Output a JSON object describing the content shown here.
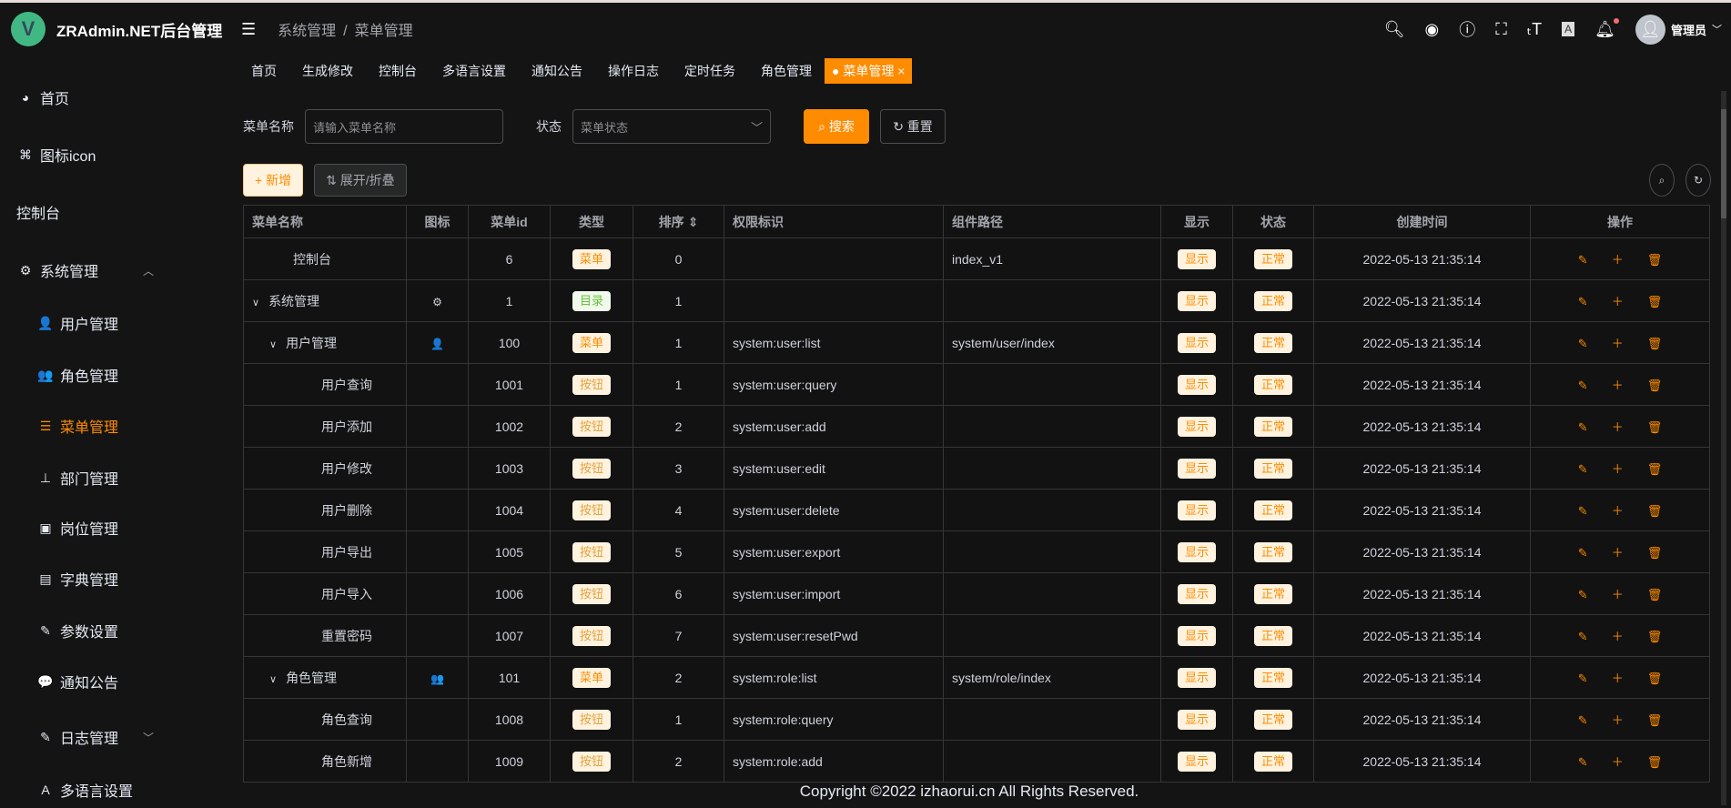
{
  "header": {
    "logo_letter": "V",
    "title": "ZRAdmin.NET后台管理",
    "breadcrumb": [
      "系统管理",
      "/",
      "菜单管理"
    ],
    "user": "管理员"
  },
  "sidebar": {
    "items": [
      {
        "label": "首页",
        "icon": "dashboard-icon",
        "glyph": "◕",
        "level": "top"
      },
      {
        "label": "图标icon",
        "icon": "icon-grid-icon",
        "glyph": "⌘",
        "level": "top"
      },
      {
        "label": "控制台",
        "icon": "",
        "glyph": "",
        "level": "top"
      },
      {
        "label": "系统管理",
        "icon": "gear-icon",
        "glyph": "⚙",
        "level": "top",
        "arrow": "︿"
      },
      {
        "label": "用户管理",
        "icon": "user-icon",
        "glyph": "👤",
        "level": "sub"
      },
      {
        "label": "角色管理",
        "icon": "peoples-icon",
        "glyph": "👥",
        "level": "sub"
      },
      {
        "label": "菜单管理",
        "icon": "tree-table-icon",
        "glyph": "☰",
        "level": "sub",
        "active": true
      },
      {
        "label": "部门管理",
        "icon": "tree-icon",
        "glyph": "⊥",
        "level": "sub"
      },
      {
        "label": "岗位管理",
        "icon": "post-icon",
        "glyph": "▣",
        "level": "sub"
      },
      {
        "label": "字典管理",
        "icon": "dict-icon",
        "glyph": "▤",
        "level": "sub"
      },
      {
        "label": "参数设置",
        "icon": "edit-icon",
        "glyph": "✎",
        "level": "sub"
      },
      {
        "label": "通知公告",
        "icon": "message-icon",
        "glyph": "💬",
        "level": "sub"
      },
      {
        "label": "日志管理",
        "icon": "log-icon",
        "glyph": "✎",
        "level": "sub",
        "arrow": "﹀"
      },
      {
        "label": "多语言设置",
        "icon": "language-icon",
        "glyph": "A",
        "level": "sub"
      }
    ]
  },
  "tags": [
    "首页",
    "生成修改",
    "控制台",
    "多语言设置",
    "通知公告",
    "操作日志",
    "定时任务",
    "角色管理",
    "● 菜单管理 ×"
  ],
  "search": {
    "name_label": "菜单名称",
    "name_placeholder": "请输入菜单名称",
    "status_label": "状态",
    "status_placeholder": "菜单状态",
    "search": "⌕ 搜索",
    "reset": "↻ 重置"
  },
  "toolbar": {
    "add": "+ 新增",
    "expand": "⇅ 展开/折叠"
  },
  "table": {
    "columns": [
      "菜单名称",
      "图标",
      "菜单id",
      "类型",
      "排序 ⇕",
      "权限标识",
      "组件路径",
      "显示",
      "状态",
      "创建时间",
      "操作"
    ],
    "rows": [
      {
        "name": "控制台",
        "indent": 0,
        "caret": "",
        "icon": "",
        "id": "6",
        "type": "菜单",
        "kind": "menu",
        "order": "0",
        "perm": "",
        "path": "index_v1",
        "visible": "显示",
        "status": "正常",
        "time": "2022-05-13 21:35:14"
      },
      {
        "name": "系统管理",
        "indent": 0,
        "caret": "∨",
        "icon": "⚙",
        "id": "1",
        "type": "目录",
        "kind": "dir",
        "order": "1",
        "perm": "",
        "path": "",
        "visible": "显示",
        "status": "正常",
        "time": "2022-05-13 21:35:14"
      },
      {
        "name": "用户管理",
        "indent": 1,
        "caret": "∨",
        "icon": "👤",
        "id": "100",
        "type": "菜单",
        "kind": "menu",
        "order": "1",
        "perm": "system:user:list",
        "path": "system/user/index",
        "visible": "显示",
        "status": "正常",
        "time": "2022-05-13 21:35:14"
      },
      {
        "name": "用户查询",
        "indent": 2,
        "caret": "",
        "icon": "",
        "id": "1001",
        "type": "按钮",
        "kind": "btn2",
        "order": "1",
        "perm": "system:user:query",
        "path": "",
        "visible": "显示",
        "status": "正常",
        "time": "2022-05-13 21:35:14"
      },
      {
        "name": "用户添加",
        "indent": 2,
        "caret": "",
        "icon": "",
        "id": "1002",
        "type": "按钮",
        "kind": "btn2",
        "order": "2",
        "perm": "system:user:add",
        "path": "",
        "visible": "显示",
        "status": "正常",
        "time": "2022-05-13 21:35:14"
      },
      {
        "name": "用户修改",
        "indent": 2,
        "caret": "",
        "icon": "",
        "id": "1003",
        "type": "按钮",
        "kind": "btn2",
        "order": "3",
        "perm": "system:user:edit",
        "path": "",
        "visible": "显示",
        "status": "正常",
        "time": "2022-05-13 21:35:14"
      },
      {
        "name": "用户删除",
        "indent": 2,
        "caret": "",
        "icon": "",
        "id": "1004",
        "type": "按钮",
        "kind": "btn2",
        "order": "4",
        "perm": "system:user:delete",
        "path": "",
        "visible": "显示",
        "status": "正常",
        "time": "2022-05-13 21:35:14"
      },
      {
        "name": "用户导出",
        "indent": 2,
        "caret": "",
        "icon": "",
        "id": "1005",
        "type": "按钮",
        "kind": "btn2",
        "order": "5",
        "perm": "system:user:export",
        "path": "",
        "visible": "显示",
        "status": "正常",
        "time": "2022-05-13 21:35:14"
      },
      {
        "name": "用户导入",
        "indent": 2,
        "caret": "",
        "icon": "",
        "id": "1006",
        "type": "按钮",
        "kind": "btn2",
        "order": "6",
        "perm": "system:user:import",
        "path": "",
        "visible": "显示",
        "status": "正常",
        "time": "2022-05-13 21:35:14"
      },
      {
        "name": "重置密码",
        "indent": 2,
        "caret": "",
        "icon": "",
        "id": "1007",
        "type": "按钮",
        "kind": "btn2",
        "order": "7",
        "perm": "system:user:resetPwd",
        "path": "",
        "visible": "显示",
        "status": "正常",
        "time": "2022-05-13 21:35:14"
      },
      {
        "name": "角色管理",
        "indent": 1,
        "caret": "∨",
        "icon": "👥",
        "id": "101",
        "type": "菜单",
        "kind": "menu",
        "order": "2",
        "perm": "system:role:list",
        "path": "system/role/index",
        "visible": "显示",
        "status": "正常",
        "time": "2022-05-13 21:35:14"
      },
      {
        "name": "角色查询",
        "indent": 2,
        "caret": "",
        "icon": "",
        "id": "1008",
        "type": "按钮",
        "kind": "btn2",
        "order": "1",
        "perm": "system:role:query",
        "path": "",
        "visible": "显示",
        "status": "正常",
        "time": "2022-05-13 21:35:14"
      },
      {
        "name": "角色新增",
        "indent": 2,
        "caret": "",
        "icon": "",
        "id": "1009",
        "type": "按钮",
        "kind": "btn2",
        "order": "2",
        "perm": "system:role:add",
        "path": "",
        "visible": "显示",
        "status": "正常",
        "time": "2022-05-13 21:35:14"
      }
    ]
  },
  "footer": "Copyright ©2022 izhaorui.cn All Rights Reserved.",
  "colors": {
    "accent": "#ff8c00",
    "background": "#141414"
  }
}
